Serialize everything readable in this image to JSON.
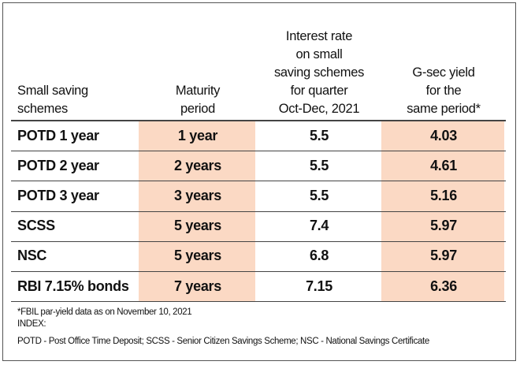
{
  "table": {
    "header": [
      [
        "Small saving",
        "schemes"
      ],
      [
        "Maturity",
        "period"
      ],
      [
        "Interest rate",
        "on small",
        "saving schemes",
        "for quarter",
        "Oct-Dec, 2021"
      ],
      [
        "G-sec yield",
        "for the",
        "same period*"
      ]
    ],
    "rows": [
      [
        "POTD 1 year",
        "1 year",
        "5.5",
        "4.03"
      ],
      [
        "POTD 2 year",
        "2 years",
        "5.5",
        "4.61"
      ],
      [
        "POTD 3 year",
        "3 years",
        "5.5",
        "5.16"
      ],
      [
        "SCSS",
        "5 years",
        "7.4",
        "5.97"
      ],
      [
        "NSC",
        "5 years",
        "6.8",
        "5.97"
      ],
      [
        "RBI 7.15% bonds",
        "7 years",
        "7.15",
        "6.36"
      ]
    ]
  },
  "notes": [
    "*FBIL par-yield data as on November 10, 2021",
    "INDEX:",
    "POTD - Post Office Time Deposit; SCSS - Senior Citizen Savings Scheme; NSC - National Savings Certificate"
  ]
}
